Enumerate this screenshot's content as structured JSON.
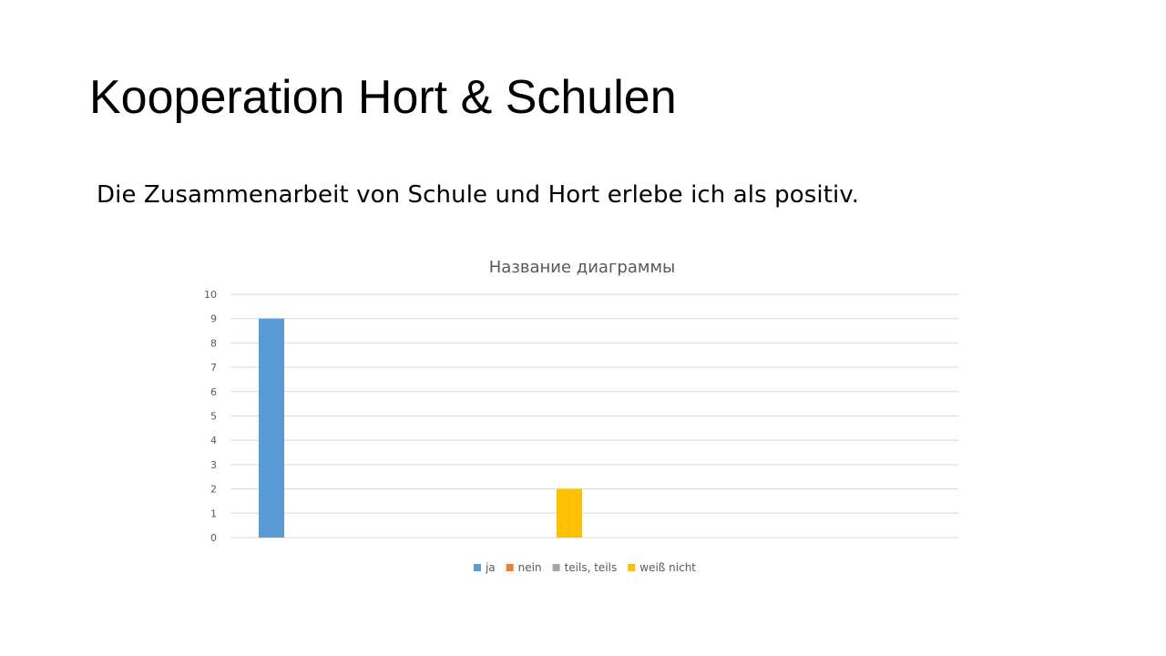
{
  "slide": {
    "title": "Kooperation Hort & Schulen",
    "subtitle": "Die Zusammenarbeit von Schule und Hort erlebe ich als positiv."
  },
  "chart_data": {
    "type": "bar",
    "title": "Название диаграммы",
    "categories": [
      ""
    ],
    "series": [
      {
        "name": "ja",
        "values": [
          9
        ],
        "color": "#5b9bd5"
      },
      {
        "name": "nein",
        "values": [
          0
        ],
        "color": "#ed7d31"
      },
      {
        "name": "teils, teils",
        "values": [
          0
        ],
        "color": "#a5a5a5"
      },
      {
        "name": "weiß nicht",
        "values": [
          2
        ],
        "color": "#ffc000"
      }
    ],
    "y_ticks": [
      "0",
      "1",
      "2",
      "3",
      "4",
      "5",
      "6",
      "7",
      "8",
      "9",
      "10"
    ],
    "ylim": [
      0,
      10
    ],
    "xlabel": "",
    "ylabel": "",
    "grid": true,
    "legend_position": "bottom"
  }
}
